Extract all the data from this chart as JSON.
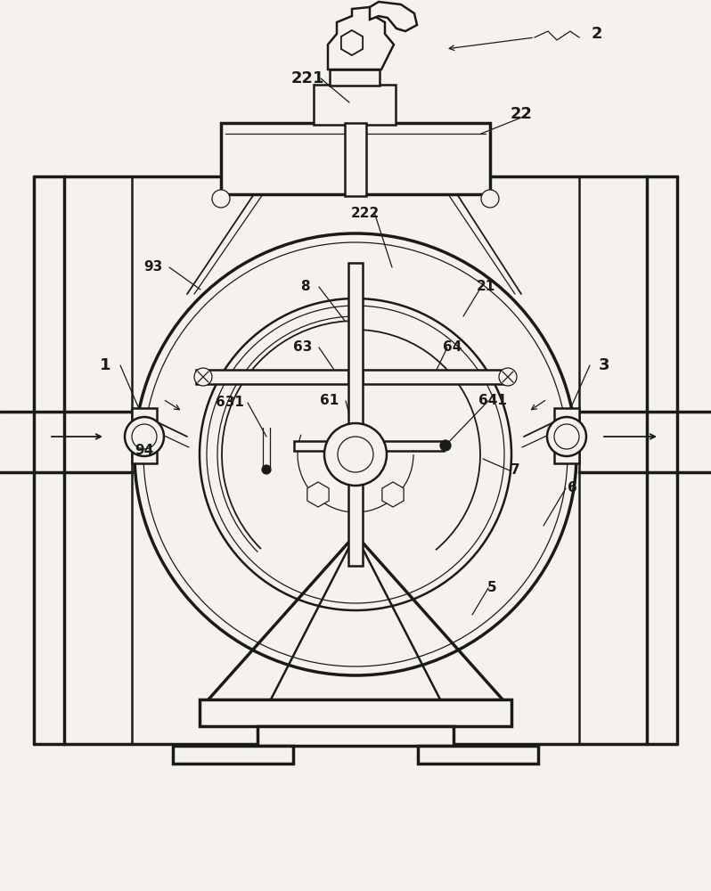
{
  "bg_color": "#f5f2ee",
  "line_color": "#1a1a1a",
  "fig_width": 7.98,
  "fig_height": 10.0,
  "dpi": 100
}
